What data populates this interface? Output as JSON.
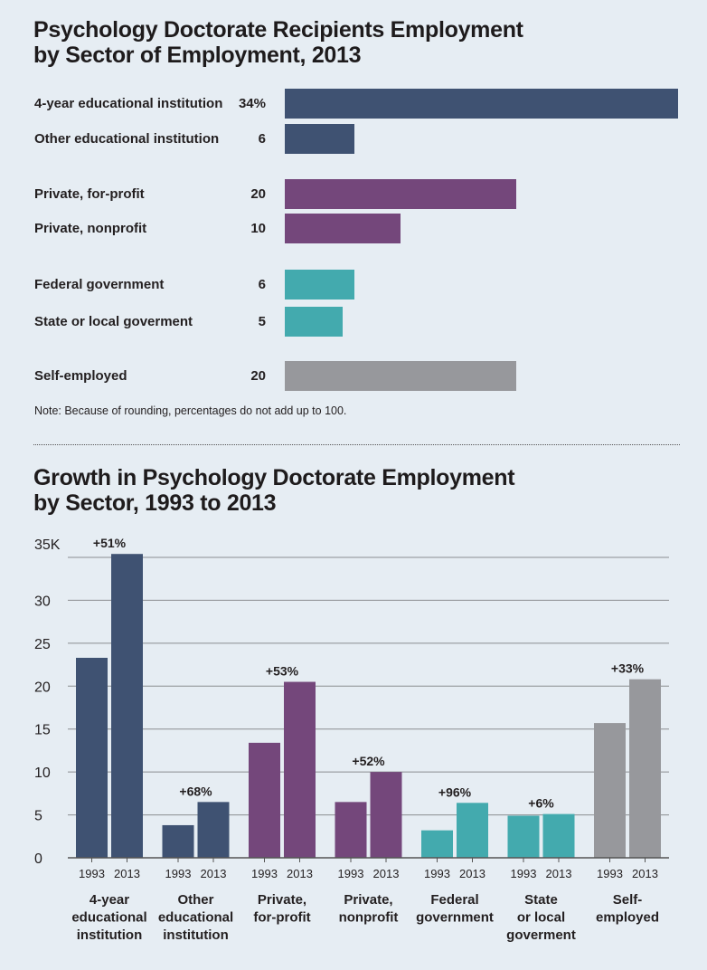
{
  "colors": {
    "educational": "#3f5272",
    "private": "#74477b",
    "government": "#43aaae",
    "self": "#97989c",
    "background": "#e6edf3"
  },
  "chart_data": [
    {
      "type": "bar",
      "orientation": "horizontal",
      "title": "Psychology Doctorate Recipients Employment by Sector of Employment, 2013",
      "title_lines": [
        "Psychology Doctorate Recipients Employment",
        "by Sector of Employment, 2013"
      ],
      "categories": [
        "4-year educational institution",
        "Other educational institution",
        "Private, for-profit",
        "Private, nonprofit",
        "Federal government",
        "State or local goverment",
        "Self-employed"
      ],
      "values": [
        34,
        6,
        20,
        10,
        6,
        5,
        20
      ],
      "value_labels": [
        "34%",
        "6",
        "20",
        "10",
        "6",
        "5",
        "20"
      ],
      "groups": [
        "educational",
        "educational",
        "private",
        "private",
        "government",
        "government",
        "self"
      ],
      "note": "Note: Because of rounding, percentages do not add up to 100."
    },
    {
      "type": "bar",
      "title": "Growth in Psychology Doctorate Employment by Sector, 1993 to 2013",
      "title_lines": [
        "Growth in Psychology Doctorate Employment",
        "by Sector, 1993 to 2013"
      ],
      "categories": [
        "4-year educational institution",
        "Other educational institution",
        "Private, for-profit",
        "Private, nonprofit",
        "Federal government",
        "State or local goverment",
        "Self-employed"
      ],
      "category_lines": [
        [
          "4-year",
          "educational",
          "institution"
        ],
        [
          "Other",
          "educational",
          "institution"
        ],
        [
          "Private,",
          "for-profit"
        ],
        [
          "Private,",
          "nonprofit"
        ],
        [
          "Federal",
          "government"
        ],
        [
          "State",
          "or local",
          "goverment"
        ],
        [
          "Self-",
          "employed"
        ]
      ],
      "groups": [
        "educational",
        "educational",
        "private",
        "private",
        "government",
        "government",
        "self"
      ],
      "series": [
        {
          "name": "1993",
          "values": [
            23.3,
            3.8,
            13.4,
            6.5,
            3.2,
            4.9,
            15.7
          ]
        },
        {
          "name": "2013",
          "values": [
            35.4,
            6.5,
            20.5,
            10.0,
            6.4,
            5.1,
            20.8
          ]
        }
      ],
      "growth_labels": [
        "+51%",
        "+68%",
        "+53%",
        "+52%",
        "+96%",
        "+6%",
        "+33%"
      ],
      "ylim": [
        0,
        35
      ],
      "yticks": [
        0,
        5,
        10,
        15,
        20,
        25,
        30,
        35
      ],
      "ytick_labels": [
        "0",
        "5",
        "10",
        "15",
        "20",
        "25",
        "30",
        "35K"
      ],
      "grid": true
    }
  ]
}
